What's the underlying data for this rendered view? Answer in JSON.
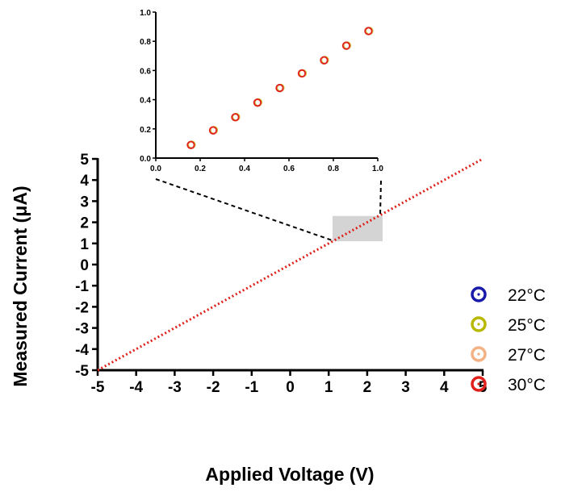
{
  "chart_data": [
    {
      "type": "scatter",
      "role": "main",
      "title": "",
      "xlabel": "Applied Voltage (V)",
      "ylabel": "Measured Current (μA)",
      "xlim": [
        -5,
        5
      ],
      "ylim": [
        -5,
        5
      ],
      "xticks": [
        -5,
        -4,
        -3,
        -2,
        -1,
        0,
        1,
        2,
        3,
        4,
        5
      ],
      "yticks": [
        -5,
        -4,
        -3,
        -2,
        -1,
        0,
        1,
        2,
        3,
        4,
        5
      ],
      "xtick_labels": [
        "-5",
        "-4",
        "-3",
        "-2",
        "-1",
        "0",
        "1",
        "2",
        "3",
        "4",
        "5"
      ],
      "ytick_labels": [
        "-5",
        "-4",
        "-3",
        "-2",
        "-1",
        "0",
        "1",
        "2",
        "3",
        "4",
        "5"
      ],
      "grid": false,
      "series": [
        {
          "name": "22°C",
          "color": "#1a1aaa",
          "line": {
            "x": [
              -5,
              5
            ],
            "y": [
              -5,
              5
            ]
          }
        },
        {
          "name": "25°C",
          "color": "#b8b800",
          "line": {
            "x": [
              -5,
              5
            ],
            "y": [
              -5,
              5
            ]
          }
        },
        {
          "name": "27°C",
          "color": "#f4b183",
          "line": {
            "x": [
              -5,
              5
            ],
            "y": [
              -5,
              5
            ]
          }
        },
        {
          "name": "30°C",
          "color": "#e0201a",
          "line": {
            "x": [
              -5,
              5
            ],
            "y": [
              -5,
              5
            ]
          }
        }
      ],
      "visible_line_color": "#e0201a",
      "zoom_region": {
        "x": [
          1.1,
          2.4
        ],
        "y": [
          1.1,
          2.3
        ]
      },
      "legend": {
        "position": "right",
        "entries": [
          {
            "label": "22°C",
            "color": "#1a1aaa"
          },
          {
            "label": "25°C",
            "color": "#b8b800"
          },
          {
            "label": "27°C",
            "color": "#f4b183"
          },
          {
            "label": "30°C",
            "color": "#e0201a"
          }
        ]
      }
    },
    {
      "type": "scatter",
      "role": "inset",
      "title": "",
      "xlabel": "",
      "ylabel": "",
      "xlim": [
        0,
        1.0
      ],
      "ylim": [
        0,
        1.0
      ],
      "xticks": [
        0,
        0.2,
        0.4,
        0.6,
        0.8,
        1.0
      ],
      "yticks": [
        0,
        0.2,
        0.4,
        0.6,
        0.8,
        1.0
      ],
      "xtick_labels": [
        "0.0",
        "0.2",
        "0.4",
        "0.6",
        "0.8",
        "1.0"
      ],
      "ytick_labels": [
        "0.0",
        "0.2",
        "0.4",
        "0.6",
        "0.8",
        "1.0"
      ],
      "grid": false,
      "series": [
        {
          "name": "22°C",
          "color": "#1a1aaa",
          "x": [
            0.16,
            0.26,
            0.36,
            0.46,
            0.56,
            0.66,
            0.76,
            0.86,
            0.96
          ],
          "y": [
            0.09,
            0.19,
            0.28,
            0.38,
            0.48,
            0.58,
            0.67,
            0.77,
            0.87
          ]
        },
        {
          "name": "25°C",
          "color": "#b8b800",
          "x": [
            0.16,
            0.26,
            0.36,
            0.46,
            0.56,
            0.66,
            0.76,
            0.86,
            0.96
          ],
          "y": [
            0.09,
            0.19,
            0.28,
            0.38,
            0.48,
            0.58,
            0.67,
            0.77,
            0.87
          ]
        },
        {
          "name": "27°C",
          "color": "#f4b183",
          "x": [
            0.16,
            0.26,
            0.36,
            0.46,
            0.56,
            0.66,
            0.76,
            0.86,
            0.96
          ],
          "y": [
            0.09,
            0.19,
            0.28,
            0.38,
            0.48,
            0.58,
            0.67,
            0.77,
            0.87
          ]
        },
        {
          "name": "30°C",
          "color": "#e0201a",
          "x": [
            0.16,
            0.26,
            0.36,
            0.46,
            0.56,
            0.66,
            0.76,
            0.86,
            0.96
          ],
          "y": [
            0.09,
            0.19,
            0.28,
            0.38,
            0.48,
            0.58,
            0.67,
            0.77,
            0.87
          ]
        }
      ]
    }
  ]
}
